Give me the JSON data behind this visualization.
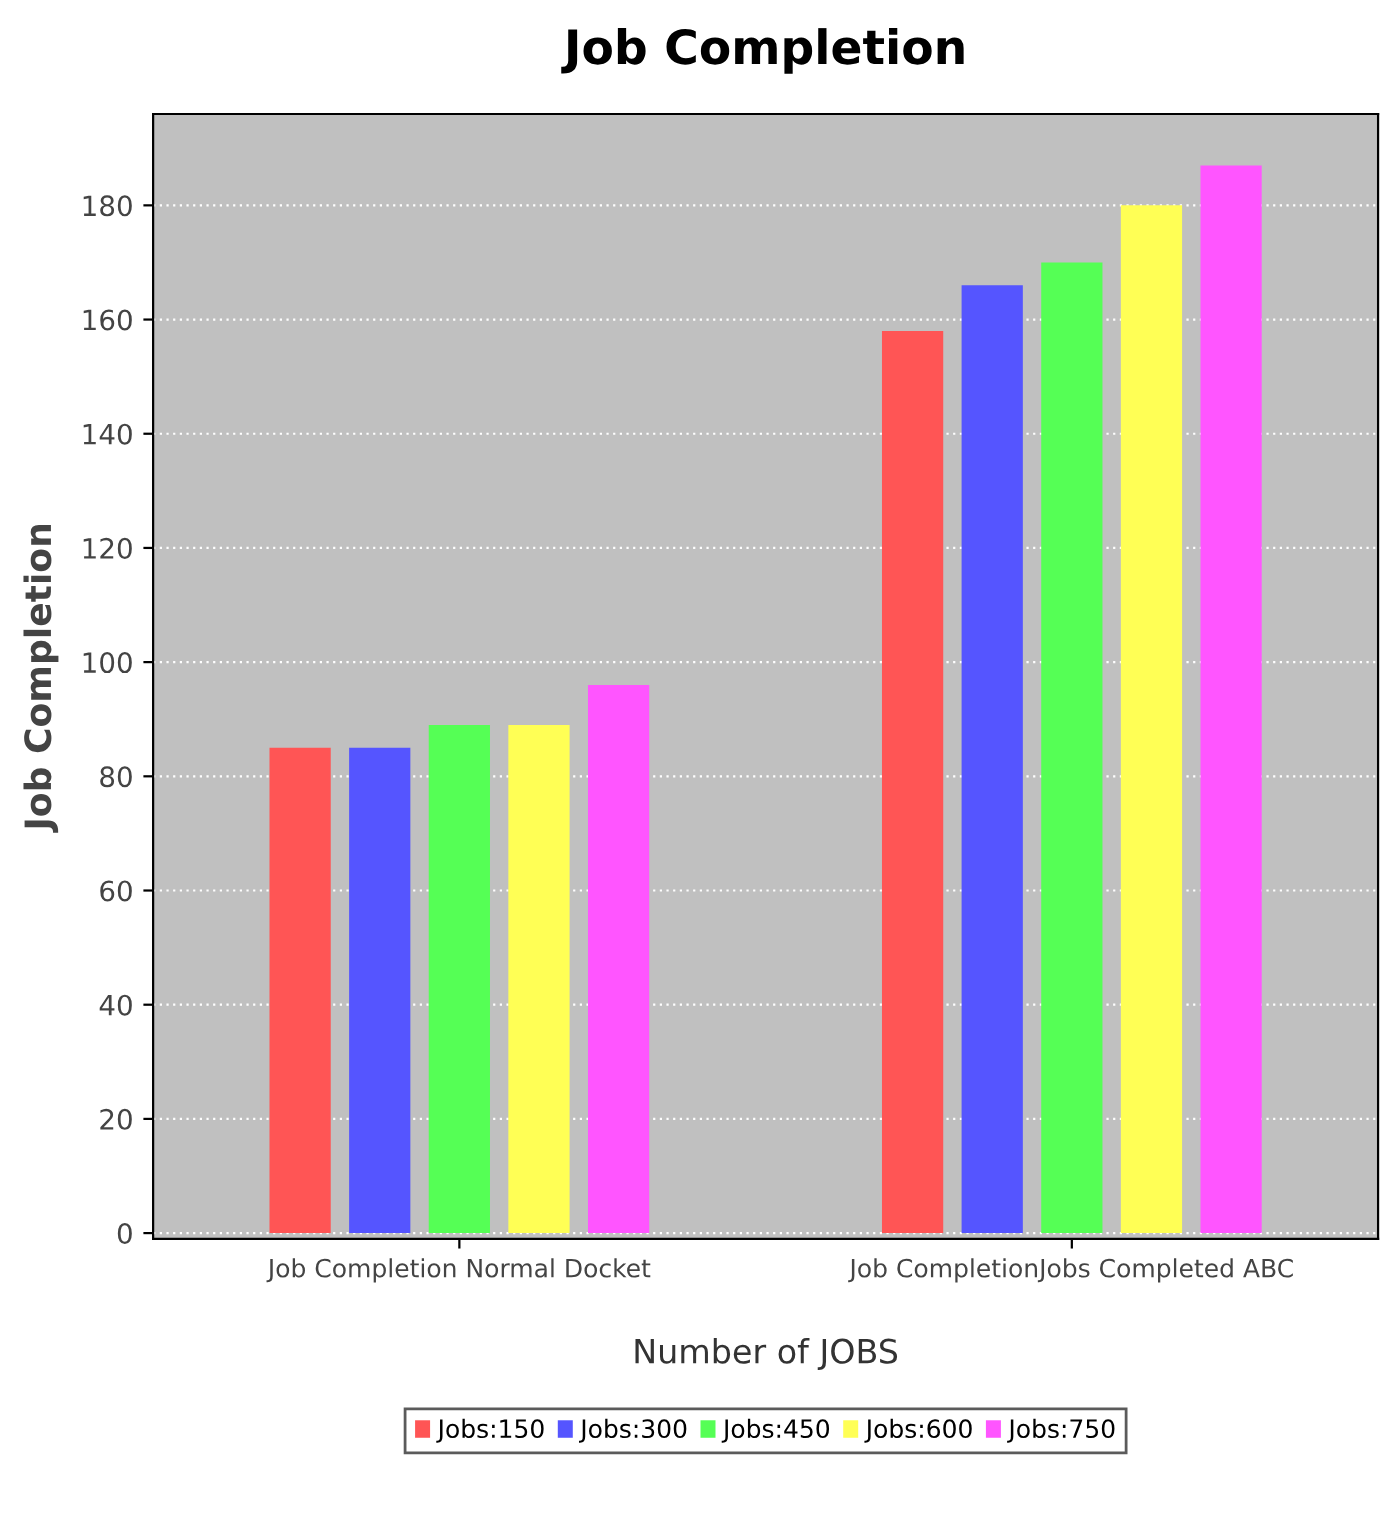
{
  "chart_data": {
    "type": "bar",
    "title": "Job Completion",
    "xlabel": "Number of JOBS",
    "ylabel": "Job Completion",
    "categories": [
      "Job Completion Normal Docket",
      "Job CompletionJobs Completed ABC"
    ],
    "series": [
      {
        "name": "Jobs:150",
        "color": "#ff5555",
        "values": [
          85,
          158
        ]
      },
      {
        "name": "Jobs:300",
        "color": "#5555ff",
        "values": [
          85,
          166
        ]
      },
      {
        "name": "Jobs:450",
        "color": "#55ff55",
        "values": [
          89,
          170
        ]
      },
      {
        "name": "Jobs:600",
        "color": "#ffff55",
        "values": [
          89,
          180
        ]
      },
      {
        "name": "Jobs:750",
        "color": "#ff55ff",
        "values": [
          96,
          187
        ]
      }
    ],
    "ylim": [
      -1,
      196
    ],
    "yticks": [
      0,
      20,
      40,
      60,
      80,
      100,
      120,
      140,
      160,
      180
    ],
    "grid": "y",
    "legend": "bottom"
  }
}
